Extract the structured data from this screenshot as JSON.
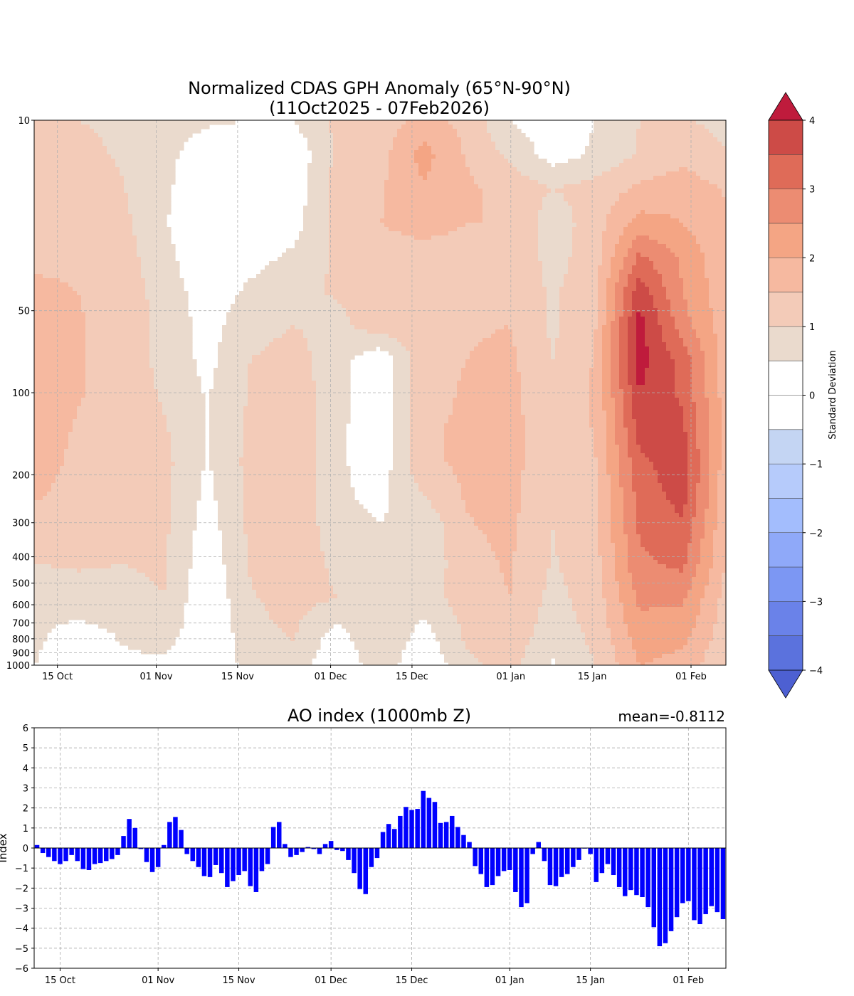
{
  "chart_data": [
    {
      "type": "heatmap",
      "title": "Normalized CDAS GPH Anomaly (65°N-90°N)",
      "subtitle": "(11Oct2025 - 07Feb2026)",
      "x_tick_labels": [
        {
          "day": 4,
          "label": "15 Oct"
        },
        {
          "day": 21,
          "label": "01 Nov"
        },
        {
          "day": 35,
          "label": "15 Nov"
        },
        {
          "day": 51,
          "label": "01 Dec"
        },
        {
          "day": 65,
          "label": "15 Dec"
        },
        {
          "day": 82,
          "label": "01 Jan"
        },
        {
          "day": 96,
          "label": "15 Jan"
        },
        {
          "day": 113,
          "label": "01 Feb"
        }
      ],
      "y_scale": "log-pressure",
      "y_levels_hpa": [
        10,
        50,
        100,
        200,
        300,
        400,
        500,
        600,
        700,
        800,
        900,
        1000
      ],
      "y_tick_labels": [
        "10",
        "50",
        "100",
        "200",
        "300",
        "400",
        "500",
        "600",
        "700",
        "800",
        "900",
        "1000"
      ],
      "x_range_days": [
        0,
        119
      ],
      "colorbar": {
        "label": "Standard Deviation",
        "ticks": [
          "4",
          "3",
          "2",
          "1",
          "0",
          "−1",
          "−2",
          "−3",
          "−4"
        ],
        "range": [
          -4,
          4
        ],
        "levels_from_top": [
          3.5,
          3.0,
          2.5,
          2.0,
          1.5,
          1.0,
          0.5,
          0.0,
          -0.5,
          -1.0,
          -1.5,
          -2.0,
          -2.5,
          -3.0,
          -3.5
        ],
        "colors_from_top": [
          "#cd4b47",
          "#df6b58",
          "#ec8c72",
          "#f4a584",
          "#f6b9a0",
          "#f3cbb8",
          "#eadacd",
          "#ffffff",
          "#ffffff",
          "#c4d5f3",
          "#b6cbfb",
          "#a3bdfd",
          "#8fa9f9",
          "#7c97f3",
          "#6a82e9",
          "#5b72dd"
        ],
        "over_color": "#bf1b3c",
        "under_color": "#4d60d2"
      },
      "field_sd": [
        [
          1.05,
          1.0,
          0.9,
          0.65,
          0.55,
          0.5,
          0.5,
          1.1,
          1.2,
          1.7,
          1.35,
          0.5,
          0.2,
          0.5,
          1.0,
          1.05,
          0.85
        ],
        [
          1.25,
          1.15,
          0.95,
          0.6,
          0.3,
          0.25,
          0.1,
          1.1,
          1.3,
          2.2,
          1.45,
          0.9,
          0.25,
          0.6,
          1.05,
          1.3,
          1.05
        ],
        [
          1.4,
          1.3,
          1.05,
          0.6,
          0.1,
          0.05,
          0.2,
          1.2,
          1.45,
          1.95,
          1.6,
          1.3,
          1.0,
          1.2,
          1.6,
          1.8,
          1.45
        ],
        [
          1.4,
          1.35,
          1.15,
          0.55,
          0.0,
          0.1,
          0.3,
          1.15,
          1.5,
          1.6,
          1.5,
          1.5,
          0.7,
          1.3,
          2.2,
          2.0,
          1.55
        ],
        [
          1.45,
          1.45,
          1.25,
          0.65,
          0.1,
          0.3,
          0.6,
          1.1,
          1.4,
          1.4,
          1.4,
          1.45,
          0.8,
          1.3,
          3.1,
          2.4,
          1.6
        ],
        [
          1.55,
          1.5,
          1.3,
          0.8,
          0.2,
          0.6,
          0.9,
          1.05,
          1.25,
          1.3,
          1.4,
          1.45,
          0.9,
          1.45,
          3.8,
          2.5,
          1.65
        ],
        [
          1.7,
          1.55,
          1.3,
          0.85,
          0.3,
          0.8,
          1.0,
          0.85,
          1.3,
          1.35,
          1.45,
          1.5,
          0.9,
          1.5,
          4.2,
          2.7,
          1.7
        ],
        [
          1.9,
          1.55,
          1.3,
          0.85,
          0.35,
          1.0,
          1.2,
          0.7,
          0.1,
          1.35,
          1.5,
          1.6,
          1.0,
          1.55,
          4.2,
          3.3,
          1.75
        ],
        [
          1.95,
          1.55,
          1.3,
          0.95,
          0.45,
          1.05,
          1.3,
          0.7,
          0.05,
          1.35,
          1.55,
          1.65,
          1.1,
          1.6,
          4.0,
          3.4,
          1.75
        ],
        [
          1.8,
          1.45,
          1.25,
          1.05,
          0.5,
          1.1,
          1.35,
          0.65,
          0.05,
          1.45,
          1.55,
          1.7,
          1.1,
          1.55,
          3.7,
          3.6,
          1.75
        ],
        [
          1.7,
          1.4,
          1.2,
          1.15,
          0.45,
          1.15,
          1.45,
          0.6,
          0.2,
          1.4,
          1.6,
          1.7,
          1.1,
          1.5,
          3.4,
          3.8,
          1.7
        ],
        [
          1.55,
          1.35,
          1.1,
          1.15,
          0.35,
          1.15,
          1.45,
          0.6,
          0.35,
          1.0,
          1.55,
          1.65,
          1.05,
          1.45,
          3.2,
          3.7,
          1.65
        ],
        [
          1.25,
          1.2,
          1.05,
          1.1,
          0.25,
          1.1,
          1.4,
          0.7,
          0.55,
          0.55,
          1.45,
          1.6,
          1.0,
          1.4,
          3.05,
          3.4,
          1.55
        ],
        [
          1.0,
          1.05,
          1.0,
          1.05,
          0.15,
          1.05,
          1.3,
          0.9,
          0.8,
          0.6,
          1.35,
          1.55,
          0.95,
          1.35,
          2.9,
          3.1,
          1.45
        ],
        [
          0.7,
          0.8,
          0.85,
          1.0,
          0.05,
          0.95,
          1.2,
          1.0,
          1.0,
          0.75,
          1.25,
          1.5,
          0.85,
          1.25,
          2.6,
          2.6,
          1.3
        ],
        [
          0.6,
          0.3,
          0.55,
          0.8,
          0.0,
          0.85,
          1.05,
          0.3,
          1.0,
          0.3,
          1.1,
          1.35,
          0.7,
          1.15,
          2.3,
          2.2,
          1.2
        ],
        [
          0.5,
          0.2,
          0.4,
          0.35,
          0.0,
          0.7,
          0.85,
          0.0,
          0.85,
          0.0,
          0.9,
          1.15,
          0.45,
          1.0,
          2.0,
          1.8,
          1.05
        ]
      ],
      "field_grid_note": "rows = pressure levels from 10 to 1000 hPa (log spaced), columns = 17 evenly spaced dates from 11 Oct to 07 Feb"
    },
    {
      "type": "bar",
      "title": "AO index (1000mb Z)",
      "mean_label": "mean=-0.8112",
      "ylabel": "Index",
      "ylim": [
        -6,
        6
      ],
      "y_ticks": [
        "6",
        "5",
        "4",
        "3",
        "2",
        "1",
        "0",
        "−1",
        "−2",
        "−3",
        "−4",
        "−5",
        "−6"
      ],
      "x_tick_labels": [
        {
          "day": 4,
          "label": "15 Oct"
        },
        {
          "day": 21,
          "label": "01 Nov"
        },
        {
          "day": 35,
          "label": "15 Nov"
        },
        {
          "day": 51,
          "label": "01 Dec"
        },
        {
          "day": 65,
          "label": "15 Dec"
        },
        {
          "day": 82,
          "label": "01 Jan"
        },
        {
          "day": 96,
          "label": "15 Jan"
        },
        {
          "day": 113,
          "label": "01 Feb"
        }
      ],
      "bar_color": "#0000ff",
      "x_start_date": "11 Oct 2025",
      "values": [
        0.15,
        -0.25,
        -0.45,
        -0.65,
        -0.8,
        -0.65,
        -0.35,
        -0.65,
        -1.05,
        -1.1,
        -0.8,
        -0.75,
        -0.65,
        -0.55,
        -0.35,
        0.6,
        1.45,
        1.0,
        -0.05,
        -0.7,
        -1.2,
        -0.95,
        0.15,
        1.3,
        1.55,
        0.9,
        -0.3,
        -0.65,
        -0.95,
        -1.4,
        -1.45,
        -0.85,
        -1.25,
        -1.95,
        -1.65,
        -1.35,
        -1.15,
        -1.9,
        -2.2,
        -1.15,
        -0.8,
        1.05,
        1.3,
        0.2,
        -0.45,
        -0.35,
        -0.2,
        0.05,
        -0.05,
        -0.3,
        0.2,
        0.35,
        -0.1,
        -0.15,
        -0.6,
        -1.25,
        -2.05,
        -2.3,
        -0.95,
        -0.5,
        0.8,
        1.2,
        0.95,
        1.6,
        2.05,
        1.9,
        1.95,
        2.85,
        2.5,
        2.3,
        1.25,
        1.3,
        1.6,
        1.05,
        0.65,
        0.3,
        -0.9,
        -1.3,
        -1.95,
        -1.85,
        -1.4,
        -1.15,
        -1.1,
        -2.2,
        -2.95,
        -2.75,
        -0.3,
        0.3,
        -0.65,
        -1.85,
        -1.9,
        -1.45,
        -1.3,
        -0.95,
        -0.6,
        0.0,
        -0.3,
        -1.7,
        -1.25,
        -0.8,
        -1.35,
        -1.95,
        -2.4,
        -2.1,
        -2.35,
        -2.45,
        -2.95,
        -3.95,
        -4.9,
        -4.75,
        -4.15,
        -3.45,
        -2.75,
        -2.65,
        -3.6,
        -3.8,
        -3.3,
        -2.9,
        -3.2,
        -3.55
      ]
    }
  ]
}
